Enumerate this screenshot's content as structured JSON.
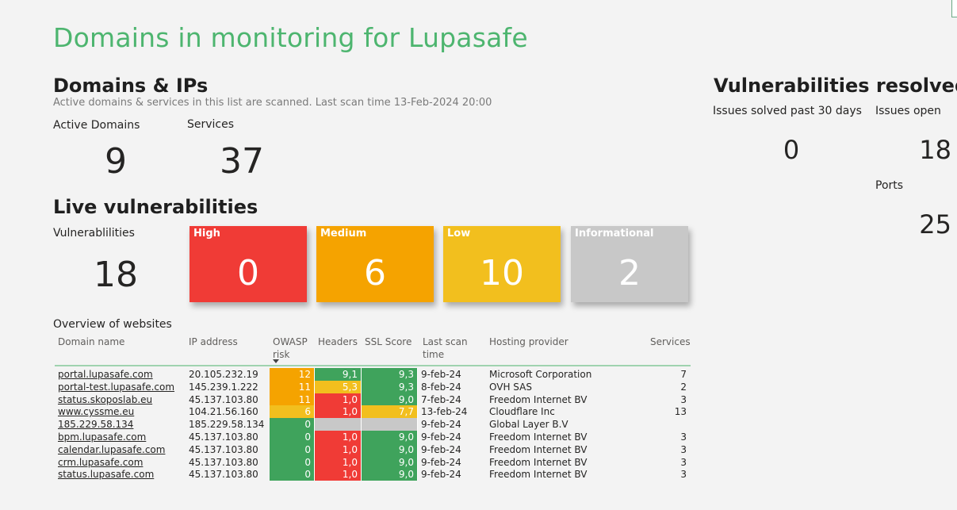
{
  "page": {
    "title": "Domains in monitoring for Lupasafe"
  },
  "domains_ips": {
    "heading": "Domains & IPs",
    "subtitle": "Active domains & services in this list are scanned. Last scan time 13-Feb-2024 20:00",
    "active_domains_label": "Active Domains",
    "active_domains_value": "9",
    "services_label": "Services",
    "services_value": "37"
  },
  "live": {
    "heading": "Live vulnerabilities",
    "vuln_label": "Vulnerablilities",
    "vuln_value": "18",
    "cards": [
      {
        "label": "High",
        "value": "0",
        "color": "#f03b36"
      },
      {
        "label": "Medium",
        "value": "6",
        "color": "#f5a300"
      },
      {
        "label": "Low",
        "value": "10",
        "color": "#f2bf1e"
      },
      {
        "label": "Informational",
        "value": "2",
        "color": "#c8c8c8"
      }
    ]
  },
  "resolved": {
    "heading": "Vulnerabilities resolved",
    "solved_label": "Issues solved past 30 days",
    "solved_value": "0",
    "open_label": "Issues open",
    "open_value": "18",
    "ports_label": "Ports",
    "ports_value": "25"
  },
  "table": {
    "title": "Overview of websites",
    "headers": {
      "domain": "Domain name",
      "ip": "IP address",
      "owasp_1": "OWASP",
      "owasp_2": "risk",
      "headers": "Headers",
      "ssl": "SSL Score",
      "scan_1": "Last scan",
      "scan_2": "time",
      "hosting": "Hosting provider",
      "services": "Services"
    },
    "colors": {
      "green": "#3fa35c",
      "red": "#f03b36",
      "orange": "#f5a300",
      "yellow": "#f2bf1e",
      "grey": "#c8c8c8"
    },
    "rows": [
      {
        "domain": "portal.lupasafe.com",
        "ip": "20.105.232.19",
        "owasp": "12",
        "owasp_color": "orange",
        "headers": "9,1",
        "headers_color": "green",
        "ssl": "9,3",
        "ssl_color": "green",
        "scan": "9-feb-24",
        "hosting": "Microsoft Corporation",
        "services": "7"
      },
      {
        "domain": "portal-test.lupasafe.com",
        "ip": "145.239.1.222",
        "owasp": "11",
        "owasp_color": "orange",
        "headers": "5,3",
        "headers_color": "yellow",
        "ssl": "9,3",
        "ssl_color": "green",
        "scan": "8-feb-24",
        "hosting": "OVH SAS",
        "services": "2"
      },
      {
        "domain": "status.skoposlab.eu",
        "ip": "45.137.103.80",
        "owasp": "11",
        "owasp_color": "orange",
        "headers": "1,0",
        "headers_color": "red",
        "ssl": "9,0",
        "ssl_color": "green",
        "scan": "7-feb-24",
        "hosting": "Freedom Internet BV",
        "services": "3"
      },
      {
        "domain": "www.cyssme.eu",
        "ip": "104.21.56.160",
        "owasp": "6",
        "owasp_color": "yellow",
        "headers": "1,0",
        "headers_color": "red",
        "ssl": "7,7",
        "ssl_color": "yellow",
        "scan": "13-feb-24",
        "hosting": "Cloudflare Inc",
        "services": "13"
      },
      {
        "domain": "185.229.58.134",
        "ip": "185.229.58.134",
        "owasp": "0",
        "owasp_color": "green",
        "headers": "",
        "headers_color": "grey",
        "ssl": "",
        "ssl_color": "grey",
        "scan": "9-feb-24",
        "hosting": "Global Layer B.V",
        "services": ""
      },
      {
        "domain": "bpm.lupasafe.com",
        "ip": "45.137.103.80",
        "owasp": "0",
        "owasp_color": "green",
        "headers": "1,0",
        "headers_color": "red",
        "ssl": "9,0",
        "ssl_color": "green",
        "scan": "9-feb-24",
        "hosting": "Freedom Internet BV",
        "services": "3"
      },
      {
        "domain": "calendar.lupasafe.com",
        "ip": "45.137.103.80",
        "owasp": "0",
        "owasp_color": "green",
        "headers": "1,0",
        "headers_color": "red",
        "ssl": "9,0",
        "ssl_color": "green",
        "scan": "9-feb-24",
        "hosting": "Freedom Internet BV",
        "services": "3"
      },
      {
        "domain": "crm.lupasafe.com",
        "ip": "45.137.103.80",
        "owasp": "0",
        "owasp_color": "green",
        "headers": "1,0",
        "headers_color": "red",
        "ssl": "9,0",
        "ssl_color": "green",
        "scan": "9-feb-24",
        "hosting": "Freedom Internet BV",
        "services": "3"
      },
      {
        "domain": "status.lupasafe.com",
        "ip": "45.137.103.80",
        "owasp": "0",
        "owasp_color": "green",
        "headers": "1,0",
        "headers_color": "red",
        "ssl": "9,0",
        "ssl_color": "green",
        "scan": "9-feb-24",
        "hosting": "Freedom Internet BV",
        "services": "3"
      }
    ]
  }
}
